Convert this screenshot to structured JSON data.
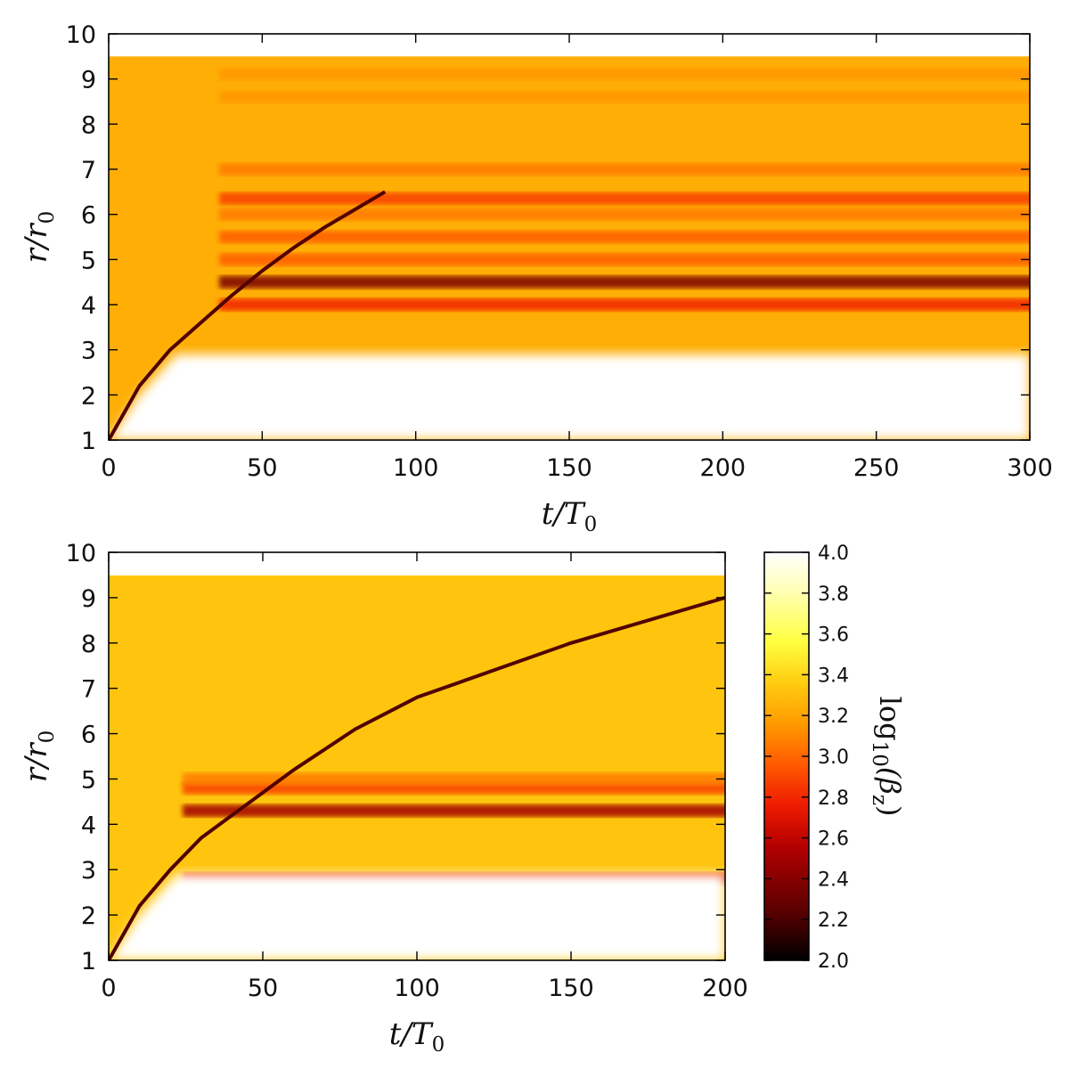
{
  "chart_data": [
    {
      "type": "heatmap",
      "panel": "top",
      "xlabel": {
        "main": "t/T",
        "sub": "0"
      },
      "ylabel": {
        "main": "r/r",
        "sub": "0"
      },
      "xlim": [
        0,
        300
      ],
      "ylim": [
        1,
        10
      ],
      "data_rmax": 9.5,
      "xticks": [
        0,
        50,
        100,
        150,
        200,
        250,
        300
      ],
      "yticks": [
        1,
        2,
        3,
        4,
        5,
        6,
        7,
        8,
        9,
        10
      ],
      "shock_front": [
        [
          0,
          1.0
        ],
        [
          10,
          2.2
        ],
        [
          20,
          3.0
        ],
        [
          30,
          3.6
        ],
        [
          40,
          4.2
        ],
        [
          50,
          4.75
        ],
        [
          60,
          5.25
        ],
        [
          70,
          5.7
        ],
        [
          80,
          6.1
        ],
        [
          90,
          6.5
        ]
      ],
      "bands": [
        {
          "r": 4.0,
          "log10_beta": 2.7
        },
        {
          "r": 4.5,
          "log10_beta": 2.3
        },
        {
          "r": 5.0,
          "log10_beta": 2.9
        },
        {
          "r": 5.5,
          "log10_beta": 2.9
        },
        {
          "r": 6.0,
          "log10_beta": 3.0
        },
        {
          "r": 6.35,
          "log10_beta": 2.8
        },
        {
          "r": 7.0,
          "log10_beta": 3.0
        },
        {
          "r": 8.6,
          "log10_beta": 3.1
        },
        {
          "r": 9.1,
          "log10_beta": 3.1
        }
      ],
      "inner_region_log10_beta": 4.0,
      "outer_region_log10_beta": 3.2
    },
    {
      "type": "heatmap",
      "panel": "bottom",
      "xlabel": {
        "main": "t/T",
        "sub": "0"
      },
      "ylabel": {
        "main": "r/r",
        "sub": "0"
      },
      "xlim": [
        0,
        200
      ],
      "ylim": [
        1,
        10
      ],
      "data_rmax": 9.5,
      "xticks": [
        0,
        50,
        100,
        150,
        200
      ],
      "yticks": [
        1,
        2,
        3,
        4,
        5,
        6,
        7,
        8,
        9,
        10
      ],
      "shock_front": [
        [
          0,
          1.0
        ],
        [
          10,
          2.2
        ],
        [
          20,
          3.0
        ],
        [
          30,
          3.7
        ],
        [
          40,
          4.2
        ],
        [
          60,
          5.2
        ],
        [
          80,
          6.1
        ],
        [
          100,
          6.8
        ],
        [
          150,
          8.0
        ],
        [
          200,
          9.0
        ]
      ],
      "bands": [
        {
          "r": 4.3,
          "log10_beta": 2.4
        },
        {
          "r": 4.8,
          "log10_beta": 2.8
        },
        {
          "r": 5.0,
          "log10_beta": 3.0
        },
        {
          "r": 2.8,
          "log10_beta": 2.7
        }
      ],
      "inner_region_log10_beta": 4.0,
      "outer_region_log10_beta": 3.3
    }
  ],
  "colorbar": {
    "label_main": "log",
    "label_sub": "10",
    "label_arg": "(β",
    "label_arg_sub": "z",
    "label_close": ")",
    "range": [
      2.0,
      4.0
    ],
    "ticks": [
      "2.0",
      "2.2",
      "2.4",
      "2.6",
      "2.8",
      "3.0",
      "3.2",
      "3.4",
      "3.6",
      "3.8",
      "4.0"
    ],
    "colormap": [
      "#000000",
      "#5a0000",
      "#b40000",
      "#ee1b00",
      "#ff5a00",
      "#ff9a00",
      "#ffcc10",
      "#ffff40",
      "#ffffb0",
      "#ffffff"
    ]
  }
}
